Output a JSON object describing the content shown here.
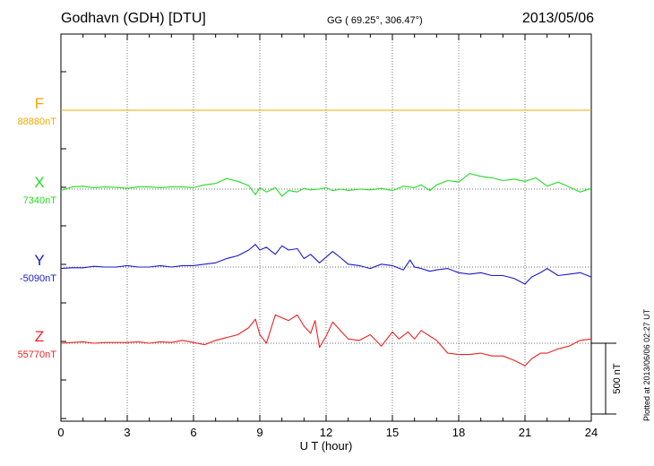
{
  "header": {
    "station": "Godhavn (GDH)  [DTU]",
    "coords": "GG ( 69.25°, 306.47°)",
    "date": "2013/05/06"
  },
  "footer": {
    "plotted": "Plotted at 2013/06/06 02:27  UT"
  },
  "chart_data": {
    "type": "line",
    "xlabel": "U T (hour)",
    "xlim": [
      0,
      24
    ],
    "xticks": [
      0,
      3,
      6,
      9,
      12,
      15,
      18,
      21,
      24
    ],
    "xtick_labels": [
      "0",
      "3",
      "6",
      "9",
      "12",
      "15",
      "18",
      "21",
      "24"
    ],
    "units": "nT",
    "scale_bar": {
      "value": 500,
      "label": "500 nT"
    },
    "grid": true,
    "series": [
      {
        "name": "F",
        "baseline_label": "88880nT",
        "baseline_nT": 88880,
        "color": "#f2a900",
        "points": [
          [
            0,
            0
          ],
          [
            24,
            0
          ]
        ]
      },
      {
        "name": "X",
        "baseline_label": "7340nT",
        "baseline_nT": 7340,
        "color": "#22dd22",
        "points": [
          [
            0,
            -10
          ],
          [
            0.5,
            15
          ],
          [
            1,
            20
          ],
          [
            1.5,
            10
          ],
          [
            2,
            15
          ],
          [
            2.5,
            12
          ],
          [
            3,
            5
          ],
          [
            3.5,
            15
          ],
          [
            4,
            15
          ],
          [
            4.5,
            10
          ],
          [
            5,
            15
          ],
          [
            5.5,
            15
          ],
          [
            6,
            10
          ],
          [
            6.5,
            30
          ],
          [
            7,
            40
          ],
          [
            7.5,
            75
          ],
          [
            8,
            55
          ],
          [
            8.5,
            25
          ],
          [
            8.8,
            -40
          ],
          [
            9,
            10
          ],
          [
            9.3,
            -20
          ],
          [
            9.7,
            10
          ],
          [
            10,
            -50
          ],
          [
            10.3,
            -10
          ],
          [
            10.7,
            -20
          ],
          [
            11,
            5
          ],
          [
            11.3,
            -5
          ],
          [
            11.7,
            0
          ],
          [
            12,
            10
          ],
          [
            12.3,
            -10
          ],
          [
            12.7,
            0
          ],
          [
            13,
            -10
          ],
          [
            13.5,
            0
          ],
          [
            14,
            -5
          ],
          [
            14.5,
            5
          ],
          [
            15,
            -10
          ],
          [
            15.5,
            20
          ],
          [
            16,
            10
          ],
          [
            16.3,
            30
          ],
          [
            16.7,
            -10
          ],
          [
            17,
            30
          ],
          [
            17.5,
            60
          ],
          [
            18,
            50
          ],
          [
            18.5,
            110
          ],
          [
            19,
            90
          ],
          [
            19.5,
            80
          ],
          [
            20,
            60
          ],
          [
            20.5,
            70
          ],
          [
            21,
            55
          ],
          [
            21.5,
            80
          ],
          [
            22,
            20
          ],
          [
            22.5,
            50
          ],
          [
            23,
            15
          ],
          [
            23.5,
            -20
          ],
          [
            24,
            5
          ]
        ]
      },
      {
        "name": "Y",
        "baseline_label": "-5090nT",
        "baseline_nT": -5090,
        "color": "#1a1acc",
        "points": [
          [
            0,
            -10
          ],
          [
            0.5,
            -5
          ],
          [
            1,
            -5
          ],
          [
            1.5,
            5
          ],
          [
            2,
            0
          ],
          [
            2.5,
            0
          ],
          [
            3,
            10
          ],
          [
            3.5,
            0
          ],
          [
            4,
            0
          ],
          [
            4.5,
            10
          ],
          [
            5,
            0
          ],
          [
            5.5,
            10
          ],
          [
            6,
            10
          ],
          [
            6.5,
            20
          ],
          [
            7,
            30
          ],
          [
            7.5,
            60
          ],
          [
            8,
            80
          ],
          [
            8.5,
            120
          ],
          [
            8.8,
            160
          ],
          [
            9,
            120
          ],
          [
            9.3,
            140
          ],
          [
            9.7,
            90
          ],
          [
            10,
            150
          ],
          [
            10.3,
            120
          ],
          [
            10.7,
            130
          ],
          [
            11,
            60
          ],
          [
            11.3,
            90
          ],
          [
            11.7,
            30
          ],
          [
            12,
            70
          ],
          [
            12.3,
            110
          ],
          [
            12.7,
            60
          ],
          [
            13,
            20
          ],
          [
            13.5,
            10
          ],
          [
            14,
            -10
          ],
          [
            14.5,
            20
          ],
          [
            15,
            10
          ],
          [
            15.5,
            -20
          ],
          [
            15.8,
            50
          ],
          [
            16,
            0
          ],
          [
            16.3,
            -10
          ],
          [
            16.7,
            -30
          ],
          [
            17,
            -20
          ],
          [
            17.5,
            -10
          ],
          [
            18,
            -40
          ],
          [
            18.5,
            -50
          ],
          [
            19,
            -40
          ],
          [
            19.5,
            -60
          ],
          [
            20,
            -60
          ],
          [
            20.5,
            -80
          ],
          [
            21,
            -120
          ],
          [
            21.3,
            -70
          ],
          [
            21.7,
            -40
          ],
          [
            22,
            -10
          ],
          [
            22.5,
            -60
          ],
          [
            23,
            -50
          ],
          [
            23.5,
            -40
          ],
          [
            24,
            -70
          ]
        ]
      },
      {
        "name": "Z",
        "baseline_label": "55770nT",
        "baseline_nT": 55770,
        "color": "#ee2222",
        "points": [
          [
            0,
            0
          ],
          [
            0.5,
            5
          ],
          [
            1,
            10
          ],
          [
            1.5,
            0
          ],
          [
            2,
            5
          ],
          [
            2.5,
            5
          ],
          [
            3,
            5
          ],
          [
            3.5,
            10
          ],
          [
            4,
            0
          ],
          [
            4.5,
            10
          ],
          [
            5,
            5
          ],
          [
            5.5,
            20
          ],
          [
            6,
            5
          ],
          [
            6.5,
            -10
          ],
          [
            7,
            20
          ],
          [
            7.5,
            40
          ],
          [
            8,
            60
          ],
          [
            8.5,
            110
          ],
          [
            8.8,
            170
          ],
          [
            9,
            60
          ],
          [
            9.3,
            0
          ],
          [
            9.7,
            200
          ],
          [
            10,
            180
          ],
          [
            10.3,
            160
          ],
          [
            10.7,
            200
          ],
          [
            11,
            120
          ],
          [
            11.3,
            70
          ],
          [
            11.5,
            160
          ],
          [
            11.7,
            -30
          ],
          [
            12,
            50
          ],
          [
            12.3,
            150
          ],
          [
            12.7,
            80
          ],
          [
            13,
            30
          ],
          [
            13.5,
            20
          ],
          [
            14,
            60
          ],
          [
            14.5,
            -20
          ],
          [
            15,
            80
          ],
          [
            15.3,
            30
          ],
          [
            15.7,
            80
          ],
          [
            16,
            30
          ],
          [
            16.3,
            90
          ],
          [
            16.7,
            50
          ],
          [
            17,
            20
          ],
          [
            17.5,
            -70
          ],
          [
            18,
            -80
          ],
          [
            18.5,
            -80
          ],
          [
            19,
            -70
          ],
          [
            19.5,
            -90
          ],
          [
            20,
            -90
          ],
          [
            20.5,
            -120
          ],
          [
            21,
            -160
          ],
          [
            21.3,
            -110
          ],
          [
            21.7,
            -70
          ],
          [
            22,
            -70
          ],
          [
            22.5,
            -40
          ],
          [
            23,
            -20
          ],
          [
            23.5,
            20
          ],
          [
            24,
            30
          ]
        ]
      }
    ]
  }
}
